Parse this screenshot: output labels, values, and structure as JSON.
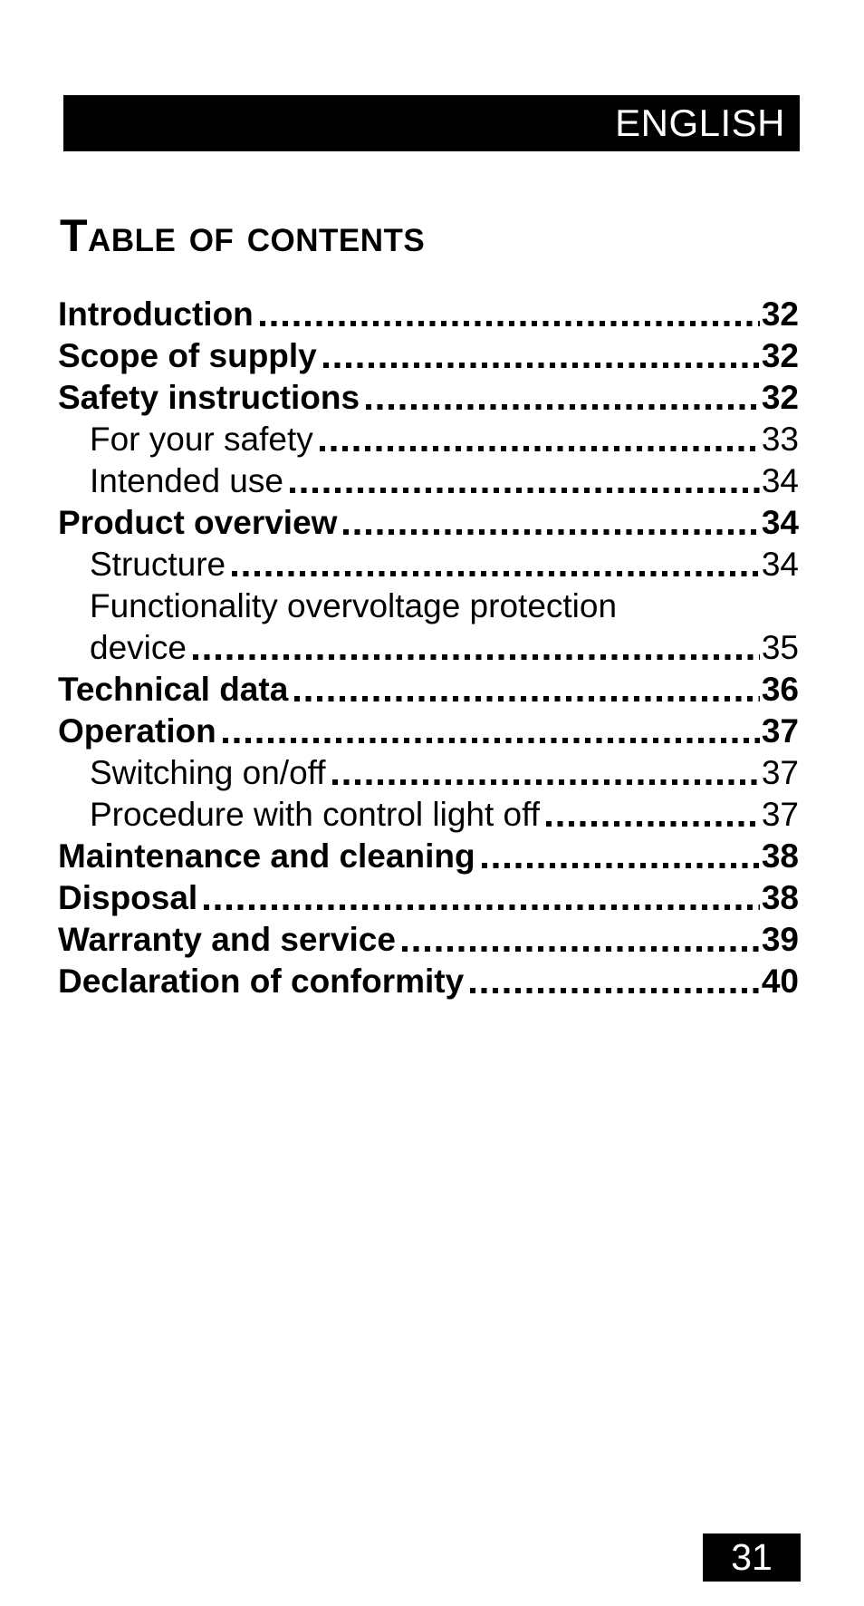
{
  "colors": {
    "ink": "#000000",
    "paper": "#ffffff",
    "header_bar_bg": "#000000",
    "header_bar_text": "#ffffff"
  },
  "header": {
    "language_label": "ENGLISH"
  },
  "toc": {
    "heading": "Table of contents",
    "entries": [
      {
        "lines": [
          "Introduction"
        ],
        "page": "32",
        "bold": true,
        "indent": false
      },
      {
        "lines": [
          "Scope of supply"
        ],
        "page": "32",
        "bold": true,
        "indent": false
      },
      {
        "lines": [
          "Safety instructions"
        ],
        "page": "32",
        "bold": true,
        "indent": false
      },
      {
        "lines": [
          "For your safety"
        ],
        "page": "33",
        "bold": false,
        "indent": true
      },
      {
        "lines": [
          "Intended use"
        ],
        "page": "34",
        "bold": false,
        "indent": true
      },
      {
        "lines": [
          "Product overview"
        ],
        "page": "34",
        "bold": true,
        "indent": false
      },
      {
        "lines": [
          "Structure"
        ],
        "page": "34",
        "bold": false,
        "indent": true
      },
      {
        "lines": [
          "Functionality overvoltage protection",
          "device"
        ],
        "page": "35",
        "bold": false,
        "indent": true
      },
      {
        "lines": [
          "Technical data"
        ],
        "page": "36",
        "bold": true,
        "indent": false
      },
      {
        "lines": [
          "Operation"
        ],
        "page": "37",
        "bold": true,
        "indent": false
      },
      {
        "lines": [
          "Switching on/off"
        ],
        "page": "37",
        "bold": false,
        "indent": true
      },
      {
        "lines": [
          "Procedure with control light off"
        ],
        "page": "37",
        "bold": false,
        "indent": true
      },
      {
        "lines": [
          "Maintenance and cleaning"
        ],
        "page": "38",
        "bold": true,
        "indent": false
      },
      {
        "lines": [
          "Disposal"
        ],
        "page": "38",
        "bold": true,
        "indent": false
      },
      {
        "lines": [
          "Warranty and service"
        ],
        "page": "39",
        "bold": true,
        "indent": false
      },
      {
        "lines": [
          "Declaration of conformity"
        ],
        "page": "40",
        "bold": true,
        "indent": false
      }
    ]
  },
  "footer": {
    "page_number": "31"
  }
}
